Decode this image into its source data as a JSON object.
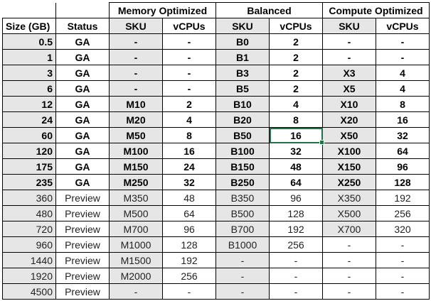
{
  "groups": [
    "Memory Optimized",
    "Balanced",
    "Compute Optimized"
  ],
  "columns": [
    "Size (GB)",
    "Status",
    "SKU",
    "vCPUs",
    "SKU",
    "vCPUs",
    "SKU",
    "vCPUs"
  ],
  "rows": [
    [
      "0.5",
      "GA",
      "-",
      "-",
      "B0",
      "2",
      "-",
      "-"
    ],
    [
      "1",
      "GA",
      "-",
      "-",
      "B1",
      "2",
      "-",
      "-"
    ],
    [
      "3",
      "GA",
      "-",
      "-",
      "B3",
      "2",
      "X3",
      "4"
    ],
    [
      "6",
      "GA",
      "-",
      "-",
      "B5",
      "2",
      "X5",
      "4"
    ],
    [
      "12",
      "GA",
      "M10",
      "2",
      "B10",
      "4",
      "X10",
      "8"
    ],
    [
      "24",
      "GA",
      "M20",
      "4",
      "B20",
      "8",
      "X20",
      "16"
    ],
    [
      "60",
      "GA",
      "M50",
      "8",
      "B50",
      "16",
      "X50",
      "32"
    ],
    [
      "120",
      "GA",
      "M100",
      "16",
      "B100",
      "32",
      "X100",
      "64"
    ],
    [
      "175",
      "GA",
      "M150",
      "24",
      "B150",
      "48",
      "X150",
      "96"
    ],
    [
      "235",
      "GA",
      "M250",
      "32",
      "B250",
      "64",
      "X250",
      "128"
    ],
    [
      "360",
      "Preview",
      "M350",
      "48",
      "B350",
      "96",
      "X350",
      "192"
    ],
    [
      "480",
      "Preview",
      "M500",
      "64",
      "B500",
      "128",
      "X500",
      "256"
    ],
    [
      "720",
      "Preview",
      "M700",
      "96",
      "B700",
      "192",
      "X700",
      "320"
    ],
    [
      "960",
      "Preview",
      "M1000",
      "128",
      "B1000",
      "256",
      "-",
      "-"
    ],
    [
      "1440",
      "Preview",
      "M1500",
      "192",
      "-",
      "-",
      "-",
      "-"
    ],
    [
      "1920",
      "Preview",
      "M2000",
      "256",
      "-",
      "-",
      "-",
      "-"
    ],
    [
      "4500",
      "Preview",
      "-",
      "-",
      "-",
      "-",
      "-",
      "-"
    ]
  ],
  "selected_cell": {
    "row": 6,
    "col": 5
  },
  "colors": {
    "shade": "#e7e6e6",
    "selection": "#217346"
  }
}
